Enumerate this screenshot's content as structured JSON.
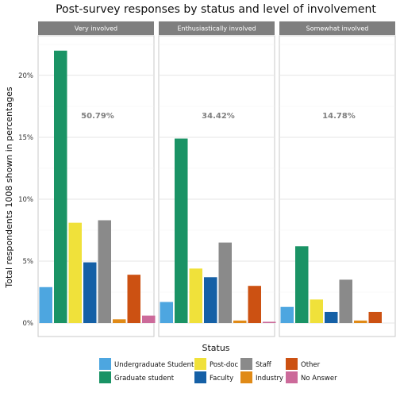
{
  "chart_data": {
    "type": "bar",
    "title": "Post-survey responses by status and level of involvement",
    "xlabel": "Status",
    "ylabel": "Total respondents 1008 shown in percentages",
    "ylim": [
      0,
      0.23
    ],
    "y_ticks": [
      0,
      0.05,
      0.1,
      0.15,
      0.2
    ],
    "y_tick_labels": [
      "0%",
      "5%",
      "10%",
      "15%",
      "20%"
    ],
    "grid": true,
    "legend_position": "bottom",
    "categories": [
      "Undergraduate Student",
      "Graduate student",
      "Post-doc",
      "Faculty",
      "Staff",
      "Industry",
      "Other",
      "No Answer"
    ],
    "colors": [
      "#4da6e0",
      "#1a9365",
      "#f0e13a",
      "#1560a6",
      "#8a8a8a",
      "#e08a17",
      "#cc5112",
      "#cc6a9a"
    ],
    "legend_rows": [
      [
        0,
        2,
        4,
        6
      ],
      [
        1,
        3,
        5,
        7
      ]
    ],
    "panels": [
      {
        "name": "Very involved",
        "total_label": "50.79%",
        "values": [
          0.029,
          0.22,
          0.081,
          0.049,
          0.083,
          0.003,
          0.039,
          0.006
        ]
      },
      {
        "name": "Enthusiastically involved",
        "total_label": "34.42%",
        "values": [
          0.017,
          0.149,
          0.044,
          0.037,
          0.065,
          0.002,
          0.03,
          0.001
        ]
      },
      {
        "name": "Somewhat involved",
        "total_label": "14.78%",
        "values": [
          0.013,
          0.062,
          0.019,
          0.009,
          0.035,
          0.002,
          0.009,
          0.0
        ]
      }
    ]
  }
}
